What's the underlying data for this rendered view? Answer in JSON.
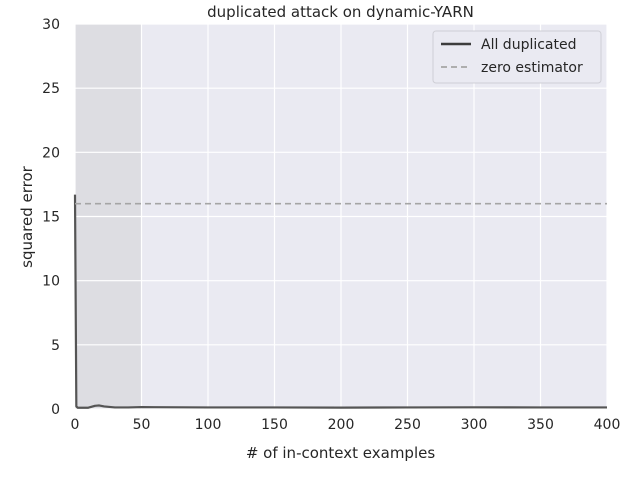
{
  "chart_data": {
    "type": "line",
    "title": "duplicated attack on dynamic-YARN",
    "xlabel": "# of in-context examples",
    "ylabel": "squared error",
    "xlim": [
      0,
      400
    ],
    "ylim": [
      0,
      30
    ],
    "xticks": [
      0,
      50,
      100,
      150,
      200,
      250,
      300,
      350,
      400
    ],
    "yticks": [
      0,
      5,
      10,
      15,
      20,
      25,
      30
    ],
    "grid": true,
    "legend_position": "top-right",
    "shaded_region": {
      "x": [
        0,
        50
      ],
      "color": "#dddde2"
    },
    "series": [
      {
        "name": "All duplicated",
        "style": "solid",
        "color": "#555555",
        "x": [
          0,
          1,
          2,
          5,
          10,
          15,
          18,
          22,
          30,
          40,
          50,
          60,
          80,
          100,
          150,
          200,
          250,
          300,
          350,
          400
        ],
        "y": [
          16.7,
          0.2,
          0.1,
          0.1,
          0.1,
          0.25,
          0.28,
          0.2,
          0.12,
          0.12,
          0.15,
          0.14,
          0.13,
          0.12,
          0.12,
          0.11,
          0.12,
          0.13,
          0.12,
          0.12
        ]
      },
      {
        "name": "zero estimator",
        "style": "dashed",
        "color": "#a5a5a5",
        "x": [
          0,
          400
        ],
        "y": [
          16.0,
          16.0
        ]
      }
    ]
  },
  "colors": {
    "plot_bg": "#eaeaf2",
    "grid": "#ffffff",
    "legend_line_solid": "#3d3d3d",
    "legend_line_dashed": "#a5a5a5"
  }
}
